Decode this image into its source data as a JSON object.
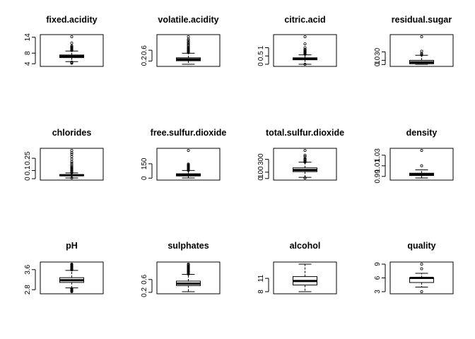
{
  "chart_data": [
    {
      "type": "boxplot",
      "title": "fixed.acidity",
      "yticks": [
        4,
        8,
        14
      ],
      "ylim": [
        3.8,
        14.2
      ],
      "box": {
        "lower_whisker": 4.8,
        "q1": 6.3,
        "median": 6.8,
        "q3": 7.3,
        "upper_whisker": 8.8
      },
      "outliers_low": [
        4.2,
        4.4,
        4.5,
        4.6
      ],
      "outliers_high": [
        9.0,
        9.2,
        9.4,
        9.6,
        9.8,
        10.0,
        10.2,
        10.5,
        10.7,
        11.8,
        14.2
      ]
    },
    {
      "type": "boxplot",
      "title": "volatile.acidity",
      "yticks": [
        0.2,
        0.6
      ],
      "ylim": [
        0.08,
        1.1
      ],
      "box": {
        "lower_whisker": 0.08,
        "q1": 0.21,
        "median": 0.26,
        "q3": 0.32,
        "upper_whisker": 0.49
      },
      "outliers_low": [],
      "outliers_high": [
        0.51,
        0.53,
        0.55,
        0.57,
        0.59,
        0.61,
        0.63,
        0.66,
        0.69,
        0.72,
        0.76,
        0.8,
        0.85,
        0.9,
        0.96,
        1.01,
        1.1
      ]
    },
    {
      "type": "boxplot",
      "title": "citric.acid",
      "yticks": [
        0.0,
        0.5,
        1.0
      ],
      "ylim": [
        0.0,
        1.66
      ],
      "box": {
        "lower_whisker": 0.0,
        "q1": 0.27,
        "median": 0.32,
        "q3": 0.39,
        "upper_whisker": 0.57
      },
      "outliers_low": [
        0.0
      ],
      "outliers_high": [
        0.6,
        0.62,
        0.64,
        0.66,
        0.68,
        0.7,
        0.72,
        0.74,
        0.76,
        0.8,
        0.85,
        0.9,
        1.0,
        1.23,
        1.66
      ]
    },
    {
      "type": "boxplot",
      "title": "residual.sugar",
      "yticks": [
        0,
        10,
        30
      ],
      "ylim": [
        0.6,
        65.8
      ],
      "box": {
        "lower_whisker": 0.6,
        "q1": 1.7,
        "median": 5.2,
        "q3": 9.9,
        "upper_whisker": 22.0
      },
      "outliers_low": [],
      "outliers_high": [
        22.6,
        23.5,
        26.05,
        31.6,
        65.8
      ]
    },
    {
      "type": "boxplot",
      "title": "chlorides",
      "yticks": [
        0.0,
        0.1,
        0.25
      ],
      "ylim": [
        0.009,
        0.346
      ],
      "box": {
        "lower_whisker": 0.009,
        "q1": 0.036,
        "median": 0.043,
        "q3": 0.05,
        "upper_whisker": 0.071
      },
      "outliers_low": [
        0.01
      ],
      "outliers_high": [
        0.073,
        0.08,
        0.09,
        0.1,
        0.11,
        0.12,
        0.13,
        0.14,
        0.15,
        0.17,
        0.19,
        0.21,
        0.24,
        0.27,
        0.3,
        0.32,
        0.346
      ]
    },
    {
      "type": "boxplot",
      "title": "free.sulfur.dioxide",
      "yticks": [
        0,
        150
      ],
      "ylim": [
        2,
        289
      ],
      "box": {
        "lower_whisker": 2,
        "q1": 23,
        "median": 34,
        "q3": 46,
        "upper_whisker": 80
      },
      "outliers_low": [],
      "outliers_high": [
        81,
        85,
        90,
        95,
        100,
        105,
        110,
        115,
        120,
        124,
        128,
        131,
        138,
        146,
        289
      ]
    },
    {
      "type": "boxplot",
      "title": "total.sulfur.dioxide",
      "yticks": [
        0,
        100,
        300
      ],
      "ylim": [
        9,
        440
      ],
      "box": {
        "lower_whisker": 19,
        "q1": 108,
        "median": 134,
        "q3": 167,
        "upper_whisker": 256
      },
      "outliers_low": [
        9,
        10,
        12
      ],
      "outliers_high": [
        258,
        260,
        262,
        266,
        272,
        282,
        294,
        303,
        313,
        344,
        366,
        440
      ]
    },
    {
      "type": "boxplot",
      "title": "density",
      "yticks": [
        0.99,
        1.01,
        1.03
      ],
      "ylim": [
        0.9871,
        1.039
      ],
      "box": {
        "lower_whisker": 0.9871,
        "q1": 0.9917,
        "median": 0.9937,
        "q3": 0.9961,
        "upper_whisker": 1.0024
      },
      "outliers_low": [],
      "outliers_high": [
        1.0103,
        1.039
      ]
    },
    {
      "type": "boxplot",
      "title": "pH",
      "yticks": [
        2.8,
        3.6
      ],
      "ylim": [
        2.72,
        3.82
      ],
      "box": {
        "lower_whisker": 2.87,
        "q1": 3.09,
        "median": 3.18,
        "q3": 3.28,
        "upper_whisker": 3.57
      },
      "outliers_low": [
        2.72,
        2.74,
        2.77,
        2.79,
        2.8,
        2.82,
        2.84
      ],
      "outliers_high": [
        3.59,
        3.61,
        3.63,
        3.65,
        3.67,
        3.69,
        3.72,
        3.74,
        3.76,
        3.77,
        3.79,
        3.8,
        3.82
      ]
    },
    {
      "type": "boxplot",
      "title": "sulphates",
      "yticks": [
        0.2,
        0.6
      ],
      "ylim": [
        0.22,
        1.08
      ],
      "box": {
        "lower_whisker": 0.22,
        "q1": 0.41,
        "median": 0.47,
        "q3": 0.55,
        "upper_whisker": 0.76
      },
      "outliers_low": [],
      "outliers_high": [
        0.77,
        0.79,
        0.81,
        0.83,
        0.85,
        0.87,
        0.89,
        0.91,
        0.93,
        0.95,
        0.97,
        0.99,
        1.01,
        1.03,
        1.06,
        1.08
      ]
    },
    {
      "type": "boxplot",
      "title": "alcohol",
      "yticks": [
        8,
        11
      ],
      "ylim": [
        8.0,
        14.2
      ],
      "box": {
        "lower_whisker": 8.0,
        "q1": 9.5,
        "median": 10.4,
        "q3": 11.4,
        "upper_whisker": 14.2
      },
      "outliers_low": [],
      "outliers_high": []
    },
    {
      "type": "boxplot",
      "title": "quality",
      "yticks": [
        3,
        6,
        9
      ],
      "ylim": [
        3,
        9
      ],
      "box": {
        "lower_whisker": 4,
        "q1": 5,
        "median": 6,
        "q3": 6,
        "upper_whisker": 7
      },
      "outliers_low": [
        3
      ],
      "outliers_high": [
        8,
        9
      ]
    }
  ]
}
